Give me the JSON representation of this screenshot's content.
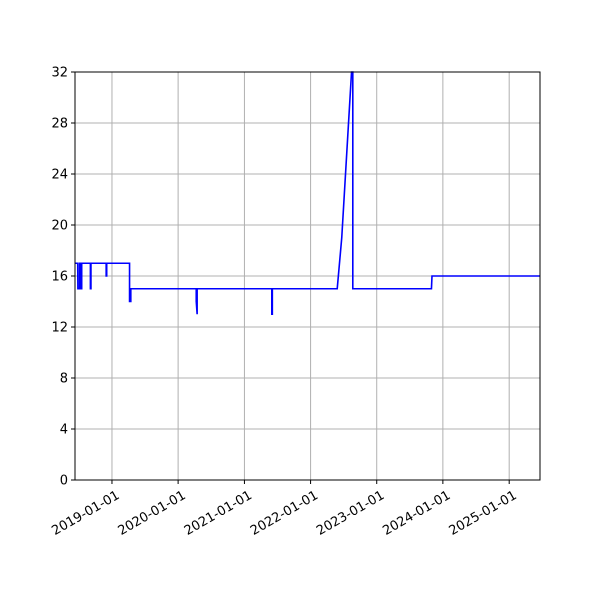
{
  "chart_data": {
    "type": "line",
    "title": "",
    "xlabel": "",
    "ylabel": "",
    "x_type": "date",
    "xlim": [
      "2018-06-11",
      "2025-06-20"
    ],
    "ylim": [
      0,
      32
    ],
    "x_ticks": [
      "2019-01-01",
      "2020-01-01",
      "2021-01-01",
      "2022-01-01",
      "2023-01-01",
      "2024-01-01",
      "2025-01-01"
    ],
    "y_ticks": [
      0,
      4,
      8,
      12,
      16,
      20,
      24,
      28,
      32
    ],
    "grid": true,
    "legend": "none",
    "colors": {
      "line": "#0000ff",
      "grid": "#b0b0b0",
      "axis": "#000000"
    },
    "series": [
      {
        "x": [
          "2018-06-11",
          "2018-06-26",
          "2018-06-27",
          "2018-07-06",
          "2018-07-06",
          "2018-07-09",
          "2018-07-09",
          "2018-07-12",
          "2018-07-12",
          "2018-07-15",
          "2018-07-15",
          "2018-07-18",
          "2018-07-18",
          "2018-07-21",
          "2018-07-21",
          "2018-09-04",
          "2018-09-04",
          "2018-09-07",
          "2018-09-07",
          "2018-11-30",
          "2018-11-30",
          "2018-12-03",
          "2018-12-03",
          "2019-04-08",
          "2019-04-08",
          "2019-04-15",
          "2019-04-15",
          "2020-04-10",
          "2020-04-10",
          "2020-04-15",
          "2020-04-15",
          "2021-06-01",
          "2021-06-01",
          "2021-06-04",
          "2021-06-04",
          "2022-05-28",
          "2022-06-22",
          "2022-08-15",
          "2022-08-22",
          "2022-08-22",
          "2023-10-30",
          "2023-11-02",
          "2025-06-20"
        ],
        "y": [
          17,
          17,
          15,
          15,
          17,
          17,
          15,
          15,
          17,
          17,
          15,
          15,
          17,
          17,
          17,
          17,
          15,
          15,
          17,
          17,
          16,
          16,
          17,
          17,
          14,
          14,
          15,
          15,
          14,
          13,
          15,
          15,
          13,
          13,
          15,
          15,
          19,
          32,
          32,
          15,
          15,
          16,
          16
        ]
      }
    ]
  }
}
